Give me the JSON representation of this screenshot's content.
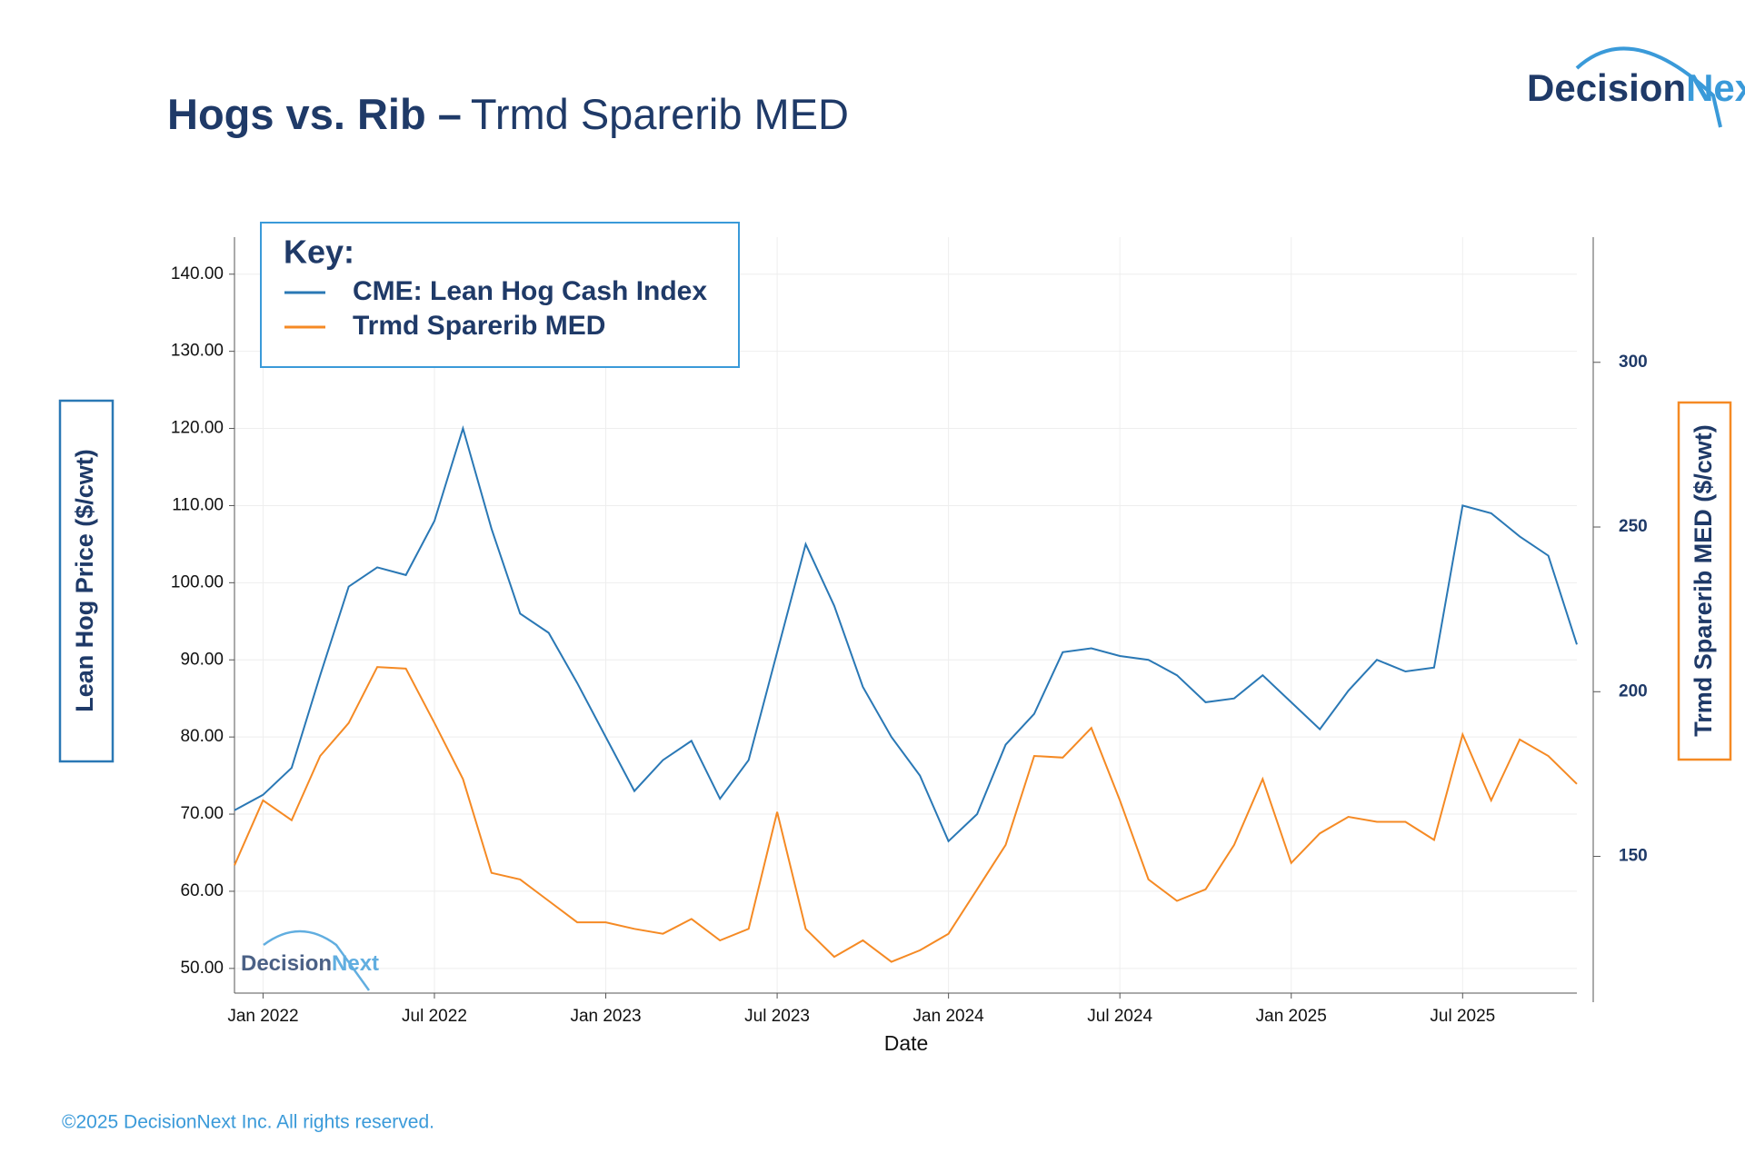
{
  "chart_data": {
    "type": "line",
    "title": "Hogs vs. Rib –",
    "subtitle": "Trmd Sparerib MED",
    "logo": [
      "Decision",
      "Next"
    ],
    "legend_title": "Key:",
    "xlabel": "Date",
    "ylabel": "Lean Hog Price  ($/cwt)",
    "y2label": "Trmd Sparerib MED  ($/cwt)",
    "footer": "©2025 DecisionNext Inc. All rights reserved.",
    "grid": true,
    "legend": "upper left",
    "x": [
      "2021-12",
      "2022-01",
      "2022-02",
      "2022-03",
      "2022-04",
      "2022-05",
      "2022-06",
      "2022-07",
      "2022-08",
      "2022-09",
      "2022-10",
      "2022-11",
      "2022-12",
      "2023-01",
      "2023-02",
      "2023-03",
      "2023-04",
      "2023-05",
      "2023-06",
      "2023-07",
      "2023-08",
      "2023-09",
      "2023-10",
      "2023-11",
      "2023-12",
      "2024-01",
      "2024-02",
      "2024-03",
      "2024-04",
      "2024-05",
      "2024-06",
      "2024-07",
      "2024-08",
      "2024-09",
      "2024-10",
      "2024-11",
      "2024-12",
      "2025-01",
      "2025-02",
      "2025-03",
      "2025-04",
      "2025-05",
      "2025-06",
      "2025-07",
      "2025-08",
      "2025-09",
      "2025-10",
      "2025-11"
    ],
    "xlim": [
      "2021-12",
      "2025-11"
    ],
    "xticks": [
      {
        "value": "2022-01",
        "label": "Jan 2022"
      },
      {
        "value": "2022-07",
        "label": "Jul 2022"
      },
      {
        "value": "2023-01",
        "label": "Jan 2023"
      },
      {
        "value": "2023-07",
        "label": "Jul 2023"
      },
      {
        "value": "2024-01",
        "label": "Jan 2024"
      },
      {
        "value": "2024-07",
        "label": "Jul 2024"
      },
      {
        "value": "2025-01",
        "label": "Jan 2025"
      },
      {
        "value": "2025-07",
        "label": "Jul 2025"
      }
    ],
    "ylim": [
      46.8,
      144.8
    ],
    "yticks": [
      {
        "value": 50,
        "label": "50.00"
      },
      {
        "value": 60,
        "label": "60.00"
      },
      {
        "value": 70,
        "label": "70.00"
      },
      {
        "value": 80,
        "label": "80.00"
      },
      {
        "value": 90,
        "label": "90.00"
      },
      {
        "value": 100,
        "label": "100.00"
      },
      {
        "value": 110,
        "label": "110.00"
      },
      {
        "value": 120,
        "label": "120.00"
      },
      {
        "value": 130,
        "label": "130.00"
      },
      {
        "value": 140,
        "label": "140.00"
      }
    ],
    "y2lim": [
      108.5,
      338
    ],
    "y2ticks": [
      150,
      200,
      250,
      300
    ],
    "series": [
      {
        "name": "CME: Lean Hog Cash Index",
        "color": "#2a78b5",
        "values": [
          70.5,
          72.5,
          76,
          88,
          99.5,
          102,
          101,
          108,
          120,
          107,
          96,
          93.5,
          87,
          80,
          73,
          77,
          79.5,
          72,
          77,
          91,
          105,
          97,
          86.5,
          80,
          75,
          66.5,
          70,
          79,
          83,
          91,
          91.5,
          90.5,
          90,
          88,
          84.5,
          85,
          88,
          84.5,
          81,
          86,
          90,
          88.5,
          89,
          110,
          109,
          106,
          103.5,
          92
        ]
      },
      {
        "name": "Trmd Sparerib MED",
        "color": "#f58a24",
        "axis": "y2",
        "values": [
          147.3,
          167,
          161,
          180.5,
          190.5,
          207.5,
          207,
          190.5,
          173.5,
          145,
          143,
          136.5,
          130,
          130,
          128,
          126.5,
          131,
          124.5,
          128,
          163.5,
          128,
          119.5,
          124.5,
          118,
          121.5,
          126.5,
          140,
          153.5,
          180.5,
          180,
          189,
          167,
          143,
          136.5,
          140,
          153.5,
          173.5,
          148,
          157,
          162,
          160.5,
          160.5,
          155,
          187,
          167,
          185.5,
          180.5,
          172
        ]
      }
    ]
  }
}
